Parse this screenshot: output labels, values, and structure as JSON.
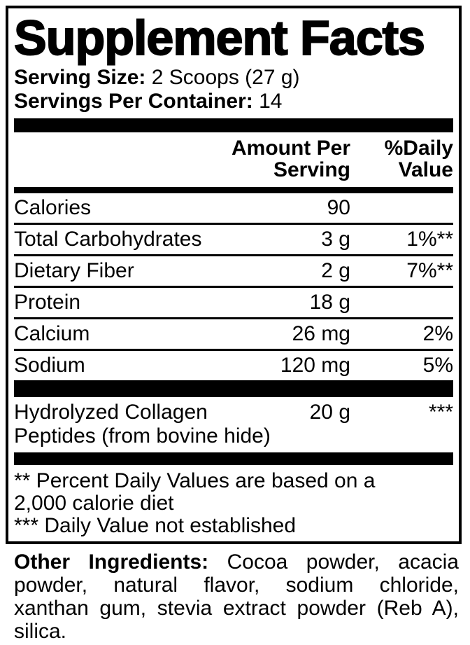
{
  "panel": {
    "title": "Supplement Facts",
    "serving_size": {
      "label": "Serving Size:",
      "value": "2 Scoops (27 g)"
    },
    "servings_per_container": {
      "label": "Servings Per Container:",
      "value": "14"
    },
    "columns": {
      "amount": "Amount Per\nServing",
      "daily_value": "%Daily\nValue"
    },
    "rows": [
      {
        "name": "Calories",
        "amount": "90",
        "dv": ""
      },
      {
        "name": "Total Carbohydrates",
        "amount": "3 g",
        "dv": "1%**"
      },
      {
        "name": "Dietary Fiber",
        "amount": "2 g",
        "dv": "7%**"
      },
      {
        "name": "Protein",
        "amount": "18 g",
        "dv": ""
      },
      {
        "name": "Calcium",
        "amount": "26 mg",
        "dv": "2%"
      },
      {
        "name": "Sodium",
        "amount": "120 mg",
        "dv": "5%"
      },
      {
        "name": "Hydrolyzed Collagen Peptides (from bovine hide)",
        "amount": "20 g",
        "dv": "***"
      }
    ],
    "footnotes": [
      "** Percent Daily Values are based on a",
      "2,000 calorie diet",
      "*** Daily Value not established"
    ]
  },
  "other_ingredients": {
    "label": "Other Ingredients:",
    "line1_rest": " Cocoa powder, acacia",
    "line2": "powder, natural flavor, sodium chloride,",
    "line3": "xanthan gum, stevia extract powder (Reb A),",
    "line4": "silica."
  },
  "colors": {
    "ink": "#000000",
    "background": "#ffffff"
  }
}
